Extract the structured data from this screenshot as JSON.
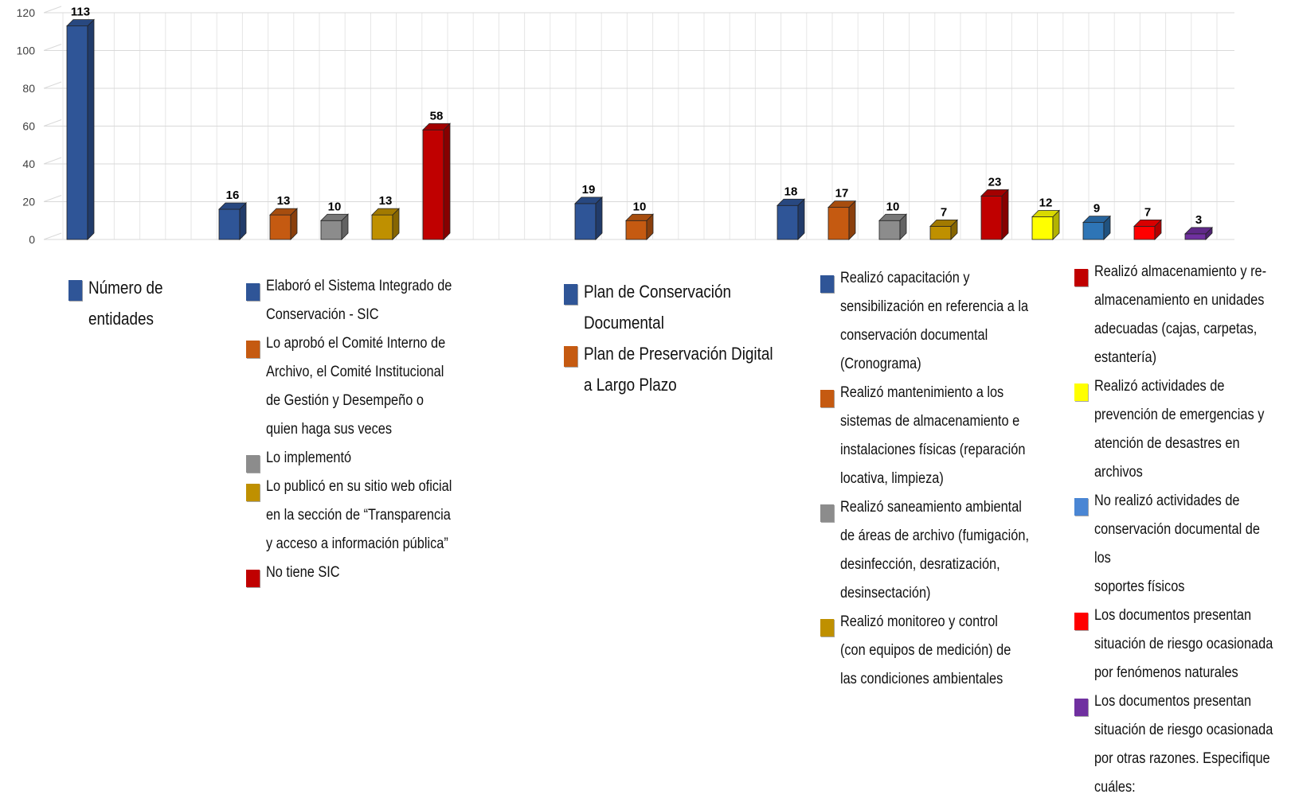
{
  "chart_data": {
    "type": "bar",
    "ylim": [
      0,
      120
    ],
    "yticks": [
      0,
      20,
      40,
      60,
      80,
      100,
      120
    ],
    "grid": true,
    "colors": {
      "blue": "#2F5597",
      "orange": "#C55A11",
      "gray": "#8C8C8C",
      "gold": "#BF9000",
      "darkred": "#C00000",
      "yellow": "#FFFF00",
      "lightblue": "#2E75B6",
      "red": "#FF0000",
      "purple": "#7030A0"
    },
    "groups": [
      {
        "series": [
          {
            "name": "Número de entidades",
            "value": 113,
            "label": "113",
            "color": "#2F5597"
          }
        ]
      },
      {
        "series": [
          {
            "name": "Elaboró el Sistema Integrado de Conservación - SIC",
            "value": 16,
            "label": "16",
            "color": "#2F5597"
          },
          {
            "name": "Lo aprobó el Comité Interno de Archivo, el Comité Institucional de Gestión y Desempeño o quien haga sus veces",
            "value": 13,
            "label": "13",
            "color": "#C55A11"
          },
          {
            "name": "Lo implementó",
            "value": 10,
            "label": "10",
            "color": "#8C8C8C"
          },
          {
            "name": "Lo publicó en su sitio web oficial en la sección de “Transparencia y acceso a información pública”",
            "value": 13,
            "label": "13",
            "color": "#BF9000"
          },
          {
            "name": "No tiene SIC",
            "value": 58,
            "label": "58",
            "color": "#C00000"
          }
        ]
      },
      {
        "series": [
          {
            "name": "Plan de Conservación Documental",
            "value": 19,
            "label": "19",
            "color": "#2F5597"
          },
          {
            "name": "Plan de Preservación Digital a Largo Plazo",
            "value": 10,
            "label": "10",
            "color": "#C55A11"
          }
        ]
      },
      {
        "series": [
          {
            "name": "Realizó capacitación y sensibilización en referencia a la conservación documental (Cronograma)",
            "value": 18,
            "label": "18",
            "color": "#2F5597"
          },
          {
            "name": "Realizó mantenimiento a los sistemas de almacenamiento e instalaciones físicas (reparación locativa, limpieza)",
            "value": 17,
            "label": "17",
            "color": "#C55A11"
          },
          {
            "name": "Realizó saneamiento ambiental de áreas de archivo (fumigación, desinfección, desratización, desinsectación)",
            "value": 10,
            "label": "10",
            "color": "#8C8C8C"
          },
          {
            "name": "Realizó monitoreo y control (con equipos de medición) de las condiciones ambientales",
            "value": 7,
            "label": "7",
            "color": "#BF9000"
          },
          {
            "name": "Realizó almacenamiento y re-almacenamiento en unidades adecuadas (cajas, carpetas, estantería)",
            "value": 23,
            "label": "23",
            "color": "#C00000"
          },
          {
            "name": "Realizó actividades de prevención de emergencias y atención de desastres en archivos",
            "value": 12,
            "label": "12",
            "color": "#FFFF00"
          },
          {
            "name": "No realizó actividades de conservación documental de los soportes físicos",
            "value": 9,
            "label": "9",
            "color": "#2E75B6"
          },
          {
            "name": "Los documentos presentan situación de riesgo ocasionada por fenómenos naturales",
            "value": 7,
            "label": "7",
            "color": "#FF0000"
          },
          {
            "name": "Los documentos presentan situación de riesgo ocasionada por otras razones. Especifique cuáles:",
            "value": 3,
            "label": "3",
            "color": "#7030A0"
          }
        ]
      }
    ]
  },
  "legend": {
    "g1": [
      {
        "lines": [
          "Número de",
          "entidades"
        ],
        "color": "#2F5597"
      }
    ],
    "g2": [
      {
        "lines": [
          "Elaboró el Sistema Integrado de",
          "Conservación - SIC"
        ],
        "color": "#2F5597"
      },
      {
        "lines": [
          "Lo aprobó el Comité Interno de",
          "Archivo, el Comité Institucional",
          "de Gestión y Desempeño o",
          "quien haga sus veces"
        ],
        "color": "#C55A11"
      },
      {
        "lines": [
          "Lo implementó"
        ],
        "color": "#8C8C8C"
      },
      {
        "lines": [
          "Lo publicó en su sitio web oficial",
          "en la sección de “Transparencia",
          "y acceso a información pública”"
        ],
        "color": "#BF9000"
      },
      {
        "lines": [
          "No tiene SIC"
        ],
        "color": "#C00000"
      }
    ],
    "g3": [
      {
        "lines": [
          "Plan de Conservación",
          "Documental"
        ],
        "color": "#2F5597"
      },
      {
        "lines": [
          "Plan de Preservación Digital",
          "a Largo Plazo"
        ],
        "color": "#C55A11"
      }
    ],
    "g4a": [
      {
        "lines": [
          "Realizó capacitación y",
          "sensibilización en referencia a la",
          "conservación documental",
          "(Cronograma)"
        ],
        "color": "#2F5597"
      },
      {
        "lines": [
          "Realizó mantenimiento a los",
          "sistemas de almacenamiento e",
          "instalaciones físicas (reparación",
          "locativa, limpieza)"
        ],
        "color": "#C55A11"
      },
      {
        "lines": [
          "Realizó saneamiento ambiental",
          "de áreas de archivo (fumigación,",
          "desinfección, desratización,",
          "desinsectación)"
        ],
        "color": "#8C8C8C"
      },
      {
        "lines": [
          "Realizó monitoreo y control",
          "(con equipos de medición) de",
          "las condiciones ambientales"
        ],
        "color": "#BF9000"
      }
    ],
    "g4b": [
      {
        "lines": [
          "Realizó almacenamiento y re-",
          "almacenamiento en unidades",
          "adecuadas (cajas, carpetas,",
          "estantería)"
        ],
        "color": "#C00000"
      },
      {
        "lines": [
          "Realizó actividades de",
          "prevención de emergencias y",
          "atención de desastres en",
          "archivos"
        ],
        "color": "#FFFF00"
      },
      {
        "lines": [
          "No realizó actividades de",
          "conservación documental de los",
          "soportes físicos"
        ],
        "color": "#4A86D4"
      },
      {
        "lines": [
          "Los documentos presentan",
          "situación de riesgo ocasionada",
          "por fenómenos naturales"
        ],
        "color": "#FF0000"
      },
      {
        "lines": [
          "Los documentos presentan",
          "situación de riesgo ocasionada",
          "por otras razones. Especifique",
          "cuáles:"
        ],
        "color": "#7030A0"
      }
    ]
  }
}
